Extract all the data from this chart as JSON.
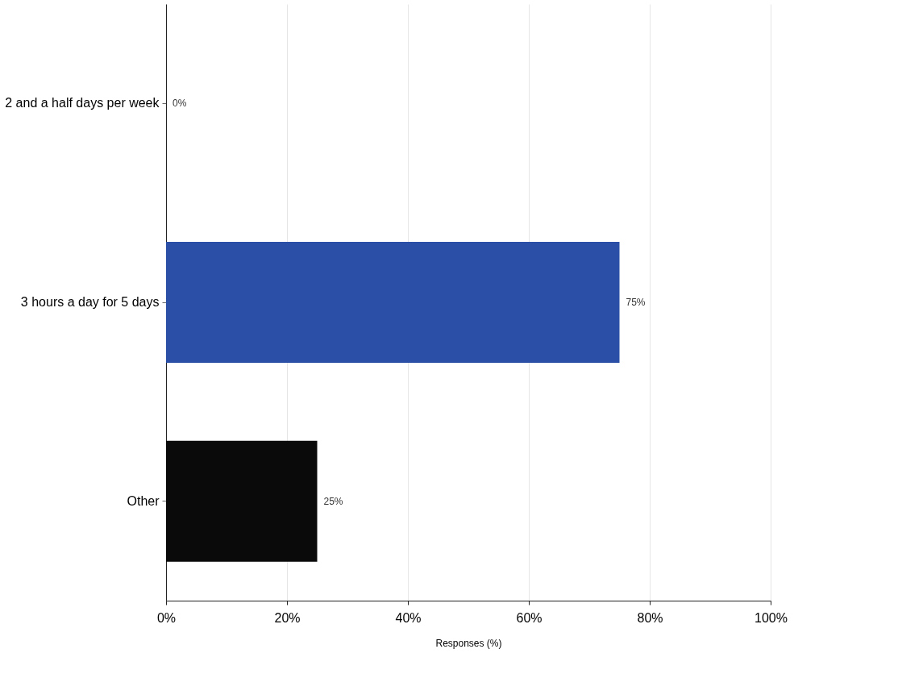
{
  "chart_data": {
    "type": "bar",
    "orientation": "horizontal",
    "xlabel": "Responses (%)",
    "categories": [
      "2 and a half days per week",
      "3 hours a day for 5 days",
      "Other"
    ],
    "values": [
      0,
      75,
      25
    ],
    "colors": [
      "#2b4fa6",
      "#2b4fa6",
      "#0a0a0a"
    ],
    "value_labels": [
      "0%",
      "75%",
      "25%"
    ],
    "xlim": [
      0,
      100
    ],
    "xticks": [
      {
        "value": 0,
        "label": "0%"
      },
      {
        "value": 20,
        "label": "20%"
      },
      {
        "value": 40,
        "label": "40%"
      },
      {
        "value": 60,
        "label": "60%"
      },
      {
        "value": 80,
        "label": "80%"
      },
      {
        "value": 100,
        "label": "100%"
      }
    ],
    "grid": "x"
  }
}
